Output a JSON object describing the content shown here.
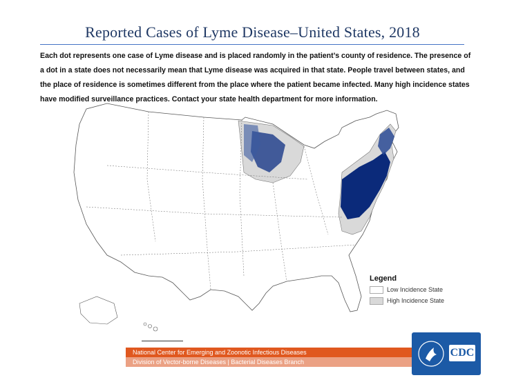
{
  "title": "Reported Cases of Lyme Disease–United States, 2018",
  "description": "Each dot represents one case of Lyme disease and is placed randomly in the patient’s county of residence. The presence of a dot in a state does not necessarily mean that Lyme disease was acquired in that state. People travel between states, and the place of residence is sometimes different from the place where the patient became infected. Many high incidence states have modified surveillance practices. Contact your state health department for more information.",
  "legend": {
    "title": "Legend",
    "items": [
      {
        "label": "Low Incidence State",
        "color": "#ffffff"
      },
      {
        "label": "High Incidence State",
        "color": "#d9d9d9"
      }
    ]
  },
  "footer": {
    "line1": "National Center for Emerging and Zoonotic Infectious Diseases",
    "line2": "Division of Vector-borne Diseases  |  Bacterial Diseases Branch"
  },
  "logo": {
    "text": "CDC"
  },
  "colors": {
    "dot": "#0b2a7a",
    "high_incidence": "#d9d9d9",
    "footer_primary": "#e0581f",
    "footer_secondary": "#eba184",
    "logo_bg": "#1c5aa6"
  }
}
